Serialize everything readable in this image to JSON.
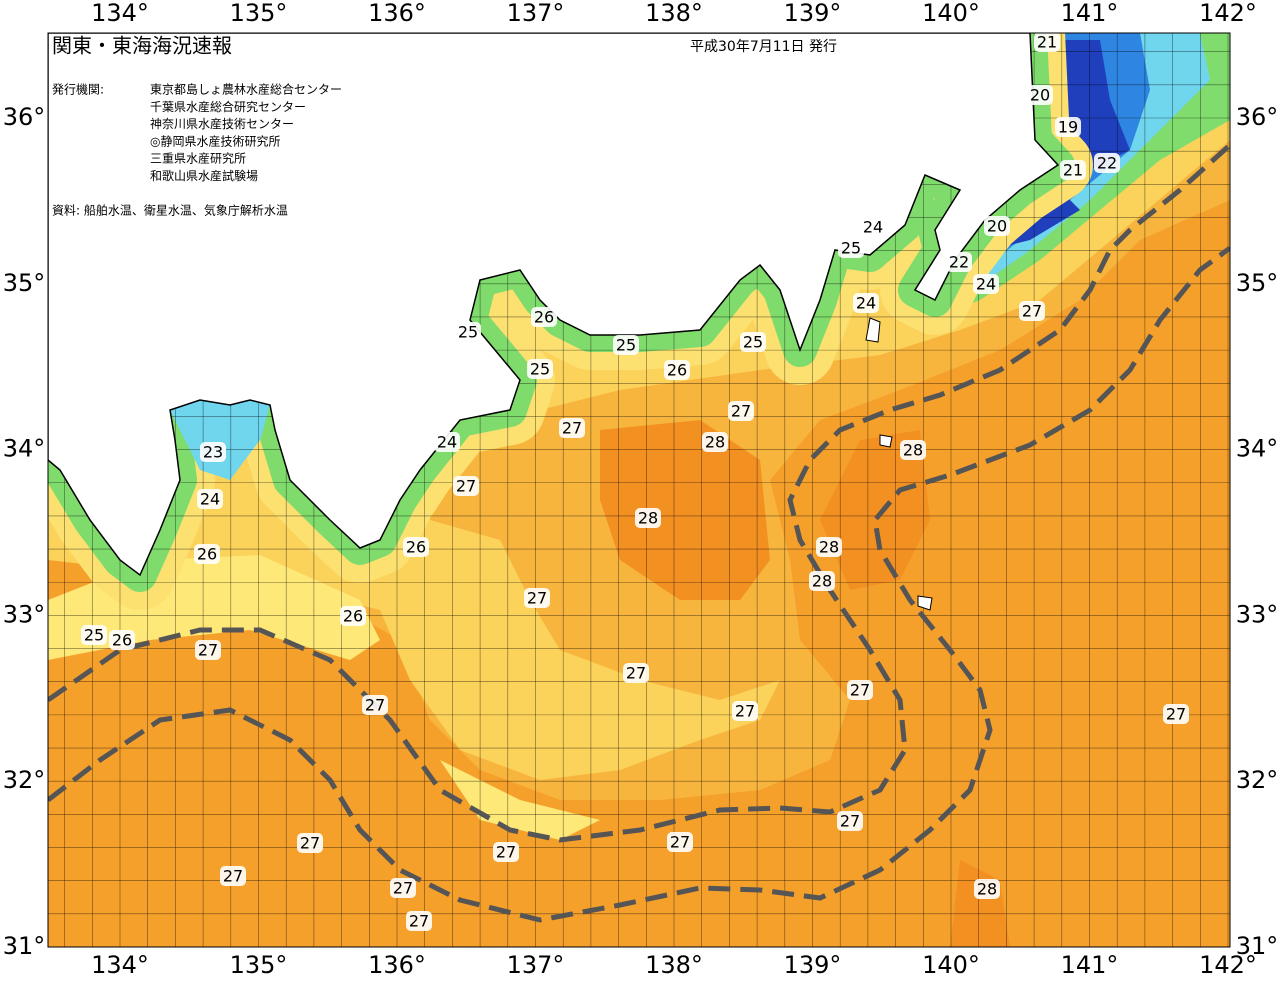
{
  "header": {
    "title": "関東・東海海況速報",
    "date": "平成30年7月11日 発行",
    "issuers_label": "発行機関:",
    "issuers": [
      "東京都島しょ農林水産総合センター",
      "千葉県水産総合研究センター",
      "神奈川県水産技術センター",
      "◎静岡県水産技術研究所",
      "三重県水産研究所",
      "和歌山県水産試験場"
    ],
    "source": "資料: 船舶水温、衛星水温、気象庁解析水温"
  },
  "map": {
    "lon_labels": [
      "134°",
      "135°",
      "136°",
      "137°",
      "138°",
      "139°",
      "140°",
      "141°",
      "142°"
    ],
    "lat_labels": [
      "36°",
      "35°",
      "34°",
      "33°",
      "32°",
      "31°"
    ],
    "contour_labels": [
      21,
      20,
      19,
      21,
      22,
      20,
      24,
      25,
      22,
      24,
      24,
      27,
      25,
      26,
      25,
      25,
      25,
      26,
      27,
      27,
      28,
      24,
      23,
      28,
      27,
      24,
      28,
      26,
      28,
      26,
      28,
      27,
      26,
      25,
      26,
      27,
      27,
      27,
      27,
      27,
      27,
      27,
      27,
      27,
      27,
      27,
      27,
      28,
      27
    ]
  }
}
